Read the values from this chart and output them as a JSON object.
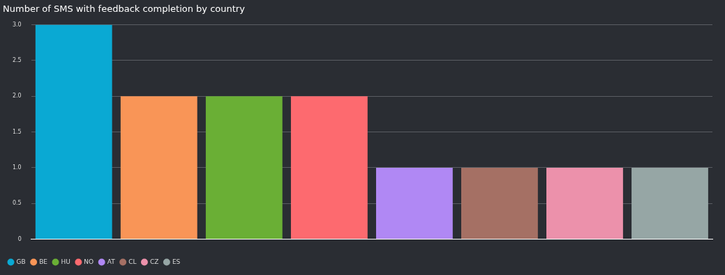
{
  "chart_data": {
    "type": "bar",
    "title": "Number of SMS with feedback completion by country",
    "categories": [
      null
    ],
    "series": [
      {
        "name": "GB",
        "color": "#0aa9d3",
        "values": [
          3
        ]
      },
      {
        "name": "BE",
        "color": "#f99557",
        "values": [
          2
        ]
      },
      {
        "name": "HU",
        "color": "#6aaf35",
        "values": [
          2
        ]
      },
      {
        "name": "NO",
        "color": "#fd6a6f",
        "values": [
          2
        ]
      },
      {
        "name": "AT",
        "color": "#b088f4",
        "values": [
          1
        ]
      },
      {
        "name": "CL",
        "color": "#a57064",
        "values": [
          1
        ]
      },
      {
        "name": "CZ",
        "color": "#ec91ab",
        "values": [
          1
        ]
      },
      {
        "name": "ES",
        "color": "#96a6a5",
        "values": [
          1
        ]
      }
    ],
    "ylim": [
      0,
      3
    ],
    "yticks": [
      0,
      0.5,
      {
        "value": 1,
        "label": "1.0"
      },
      1.5,
      {
        "value": 2,
        "label": "2.0"
      },
      2.5,
      {
        "value": 3,
        "label": "3.0"
      }
    ],
    "grid": "y",
    "legend": "bottom left"
  }
}
